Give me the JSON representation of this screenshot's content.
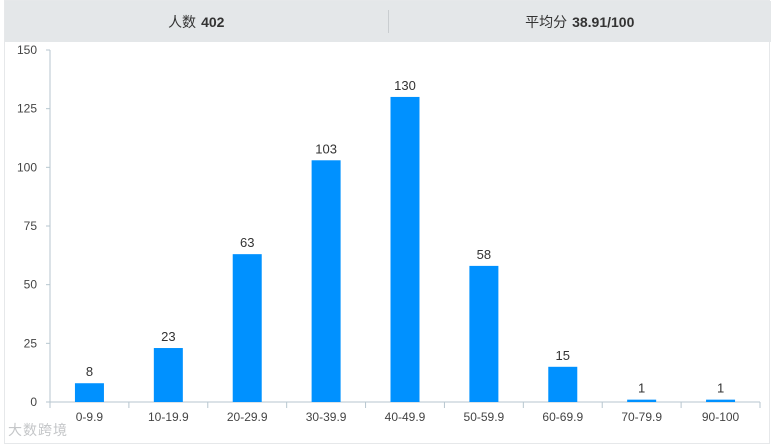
{
  "stats": {
    "count_label": "人数",
    "count_value": "402",
    "avg_label": "平均分",
    "avg_value": "38.91/100"
  },
  "watermark": "大数跨境",
  "colors": {
    "bar": "#0091ff",
    "header_bg": "#e4e7e9",
    "axis": "#b7c6cf"
  },
  "chart_data": {
    "type": "bar",
    "categories": [
      "0-9.9",
      "10-19.9",
      "20-29.9",
      "30-39.9",
      "40-49.9",
      "50-59.9",
      "60-69.9",
      "70-79.9",
      "90-100"
    ],
    "values": [
      8,
      23,
      63,
      103,
      130,
      58,
      15,
      1,
      1
    ],
    "yticks": [
      0,
      25,
      50,
      75,
      100,
      125,
      150
    ],
    "ylim": [
      0,
      150
    ],
    "title": "",
    "xlabel": "",
    "ylabel": "",
    "grid": false,
    "data_labels": true
  }
}
